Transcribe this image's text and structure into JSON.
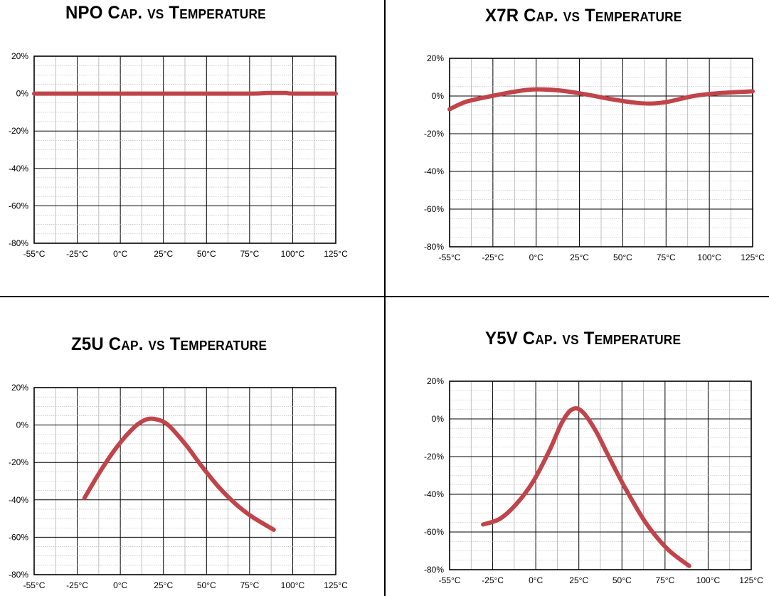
{
  "colors": {
    "curve": "#c0444a",
    "grid_minor": "#b0b0b0",
    "grid_major": "#000000"
  },
  "chart_data": [
    {
      "type": "line",
      "title": "NPO Cap. vs Temperature",
      "x_tick_labels": [
        "-55°C",
        "-25°C",
        "0°C",
        "25°C",
        "50°C",
        "75°C",
        "100°C",
        "125°C"
      ],
      "y_tick_labels": [
        "20%",
        "0%",
        "-20%",
        "-40%",
        "-60%",
        "-80%"
      ],
      "xlim": [
        -55,
        125
      ],
      "ylim": [
        -80,
        20
      ],
      "grid": true,
      "series": [
        {
          "x": [
            -55,
            -25,
            0,
            25,
            50,
            75,
            85,
            95,
            100,
            125
          ],
          "y": [
            0,
            0,
            0,
            0,
            0,
            0,
            0.3,
            0.3,
            0,
            0
          ]
        }
      ]
    },
    {
      "type": "line",
      "title": "X7R Cap. vs Temperature",
      "x_tick_labels": [
        "-55°C",
        "-25°C",
        "0°C",
        "25°C",
        "50°C",
        "75°C",
        "100°C",
        "125°C"
      ],
      "y_tick_labels": [
        "20%",
        "0%",
        "-20%",
        "-40%",
        "-60%",
        "-80%"
      ],
      "xlim": [
        -55,
        125
      ],
      "ylim": [
        -80,
        20
      ],
      "grid": true,
      "series": [
        {
          "x": [
            -55,
            -45,
            -30,
            -15,
            -5,
            10,
            25,
            40,
            55,
            65,
            75,
            90,
            105,
            125
          ],
          "y": [
            -7,
            -3,
            0,
            2.5,
            3.5,
            3,
            1,
            -1.5,
            -3.5,
            -4,
            -3,
            0,
            1.5,
            2.5
          ]
        }
      ]
    },
    {
      "type": "line",
      "title": "Z5U Cap. vs Temperature",
      "x_tick_labels": [
        "-55°C",
        "-25°C",
        "0°C",
        "25°C",
        "50°C",
        "75°C",
        "100°C",
        "125°C"
      ],
      "y_tick_labels": [
        "20%",
        "0%",
        "-20%",
        "-40%",
        "-60%",
        "-80%"
      ],
      "xlim": [
        -55,
        125
      ],
      "ylim": [
        -80,
        20
      ],
      "grid": true,
      "series": [
        {
          "x": [
            -25,
            -15,
            -5,
            5,
            12,
            18,
            25,
            35,
            45,
            55,
            65,
            75,
            88
          ],
          "y": [
            -39,
            -24,
            -11,
            -1,
            3,
            3,
            0,
            -10,
            -22,
            -33,
            -42,
            -49,
            -56
          ]
        }
      ]
    },
    {
      "type": "line",
      "title": "Y5V Cap. vs Temperature",
      "x_tick_labels": [
        "-55°C",
        "-25°C",
        "0°C",
        "25°C",
        "50°C",
        "75°C",
        "100°C",
        "125°C"
      ],
      "y_tick_labels": [
        "20%",
        "0%",
        "-20%",
        "-40%",
        "-60%",
        "-80%"
      ],
      "xlim": [
        -55,
        125
      ],
      "ylim": [
        -80,
        20
      ],
      "grid": true,
      "series": [
        {
          "x": [
            -35,
            -25,
            -15,
            -5,
            5,
            12,
            18,
            24,
            32,
            40,
            50,
            62,
            75,
            88
          ],
          "y": [
            -56,
            -53,
            -45,
            -33,
            -16,
            -2,
            5,
            4,
            -6,
            -20,
            -37,
            -55,
            -69,
            -78
          ]
        }
      ]
    }
  ]
}
